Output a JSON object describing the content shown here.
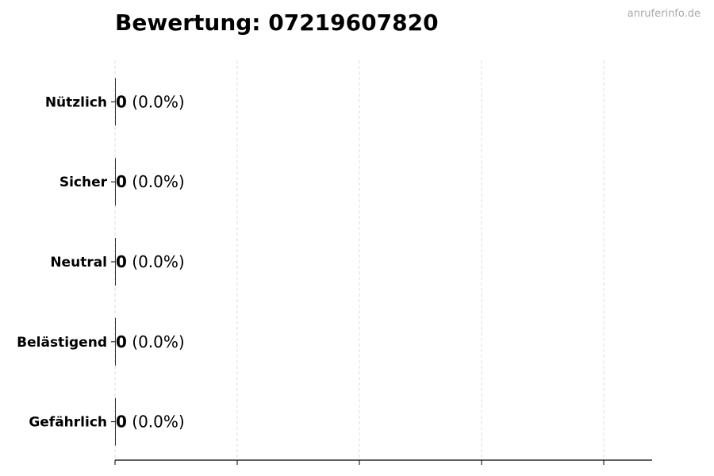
{
  "chart_data": {
    "type": "bar",
    "orientation": "horizontal",
    "title": "Bewertung: 07219607820",
    "categories": [
      "Nützlich",
      "Sicher",
      "Neutral",
      "Belästigend",
      "Gefährlich"
    ],
    "values": [
      0,
      0,
      0,
      0,
      0
    ],
    "percent_labels": [
      "(0.0%)",
      "(0.0%)",
      "(0.0%)",
      "(0.0%)",
      "(0.0%)"
    ],
    "xlim": [
      0,
      4.4
    ],
    "x_gridlines": [
      0,
      1,
      2,
      3,
      4
    ],
    "grid": "vertical dashed",
    "xlabel": "",
    "ylabel": "",
    "colors": {
      "bar": "#000000",
      "grid": "#dddddd"
    }
  },
  "watermark": "anruferinfo.de"
}
